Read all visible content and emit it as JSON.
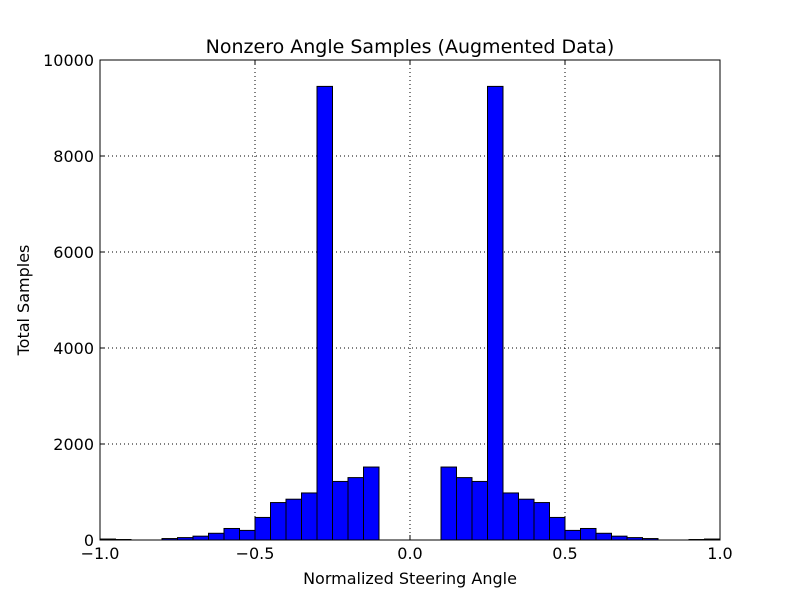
{
  "chart_data": {
    "type": "bar",
    "title": "Nonzero Angle Samples (Augmented Data)",
    "xlabel": "Normalized Steering Angle",
    "ylabel": "Total Samples",
    "xlim": [
      -1.0,
      1.0
    ],
    "ylim": [
      0,
      10000
    ],
    "grid": true,
    "x_ticks": [
      "−1.0",
      "−0.5",
      "0.0",
      "0.5",
      "1.0"
    ],
    "y_ticks": [
      "0",
      "2000",
      "4000",
      "6000",
      "8000",
      "10000"
    ],
    "bar_color": "#0000ff",
    "edge_color": "#000000",
    "bins": {
      "left_edges": [
        -1.0,
        -0.95,
        -0.9,
        -0.85,
        -0.8,
        -0.75,
        -0.7,
        -0.65,
        -0.6,
        -0.55,
        -0.5,
        -0.45,
        -0.4,
        -0.35,
        -0.3,
        -0.25,
        -0.2,
        -0.15,
        -0.1,
        -0.05,
        0.0,
        0.05,
        0.1,
        0.15,
        0.2,
        0.25,
        0.3,
        0.35,
        0.4,
        0.45,
        0.5,
        0.55,
        0.6,
        0.65,
        0.7,
        0.75,
        0.8,
        0.85,
        0.9,
        0.95
      ],
      "width": 0.05,
      "counts": [
        20,
        10,
        0,
        0,
        30,
        50,
        80,
        140,
        240,
        200,
        470,
        780,
        850,
        980,
        9450,
        1220,
        1300,
        1520,
        0,
        0,
        0,
        0,
        1520,
        1300,
        1220,
        9450,
        980,
        850,
        780,
        470,
        200,
        240,
        140,
        80,
        50,
        30,
        0,
        0,
        10,
        20
      ]
    }
  }
}
